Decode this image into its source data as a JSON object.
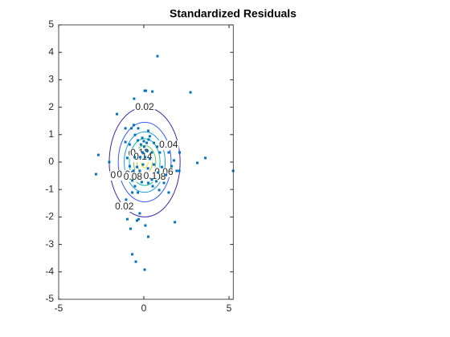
{
  "chart_data": {
    "type": "scatter",
    "title": "Standardized Residuals",
    "xlim": [
      -5,
      5.25
    ],
    "ylim": [
      -5,
      5
    ],
    "xticks": [
      -5,
      0,
      5
    ],
    "yticks": [
      -5,
      -4,
      -3,
      -2,
      -1,
      0,
      1,
      2,
      3,
      4,
      5
    ],
    "color": "#0072bd",
    "x": [
      0.8,
      0.05,
      0.12,
      0.5,
      2.74,
      -0.57,
      -1.58,
      -2.03,
      -2.67,
      -2.81,
      2.1,
      3.14,
      3.61,
      5.24,
      2.08,
      1.93,
      1.46,
      1.82,
      -0.97,
      -1.04,
      -0.24,
      -0.4,
      -0.31,
      -0.78,
      0.09,
      0.26,
      -0.68,
      -0.47,
      0.05,
      -0.59,
      -0.33,
      -1.08,
      -0.97,
      -0.83,
      -0.61,
      -0.68,
      -0.52,
      0.35,
      0.59,
      0.78,
      0.94,
      1.06,
      0.83,
      0.47,
      0.26,
      -0.12,
      -0.35,
      -0.17,
      0,
      0.17,
      0.28,
      0.17,
      0.07,
      -0.07,
      -0.21,
      0.35,
      0.47,
      -0.4,
      -0.24,
      -0.05,
      0.24,
      0.59,
      -0.54,
      -0.83,
      0.02,
      -0.09,
      0.26,
      -0.52,
      -1.08,
      -0.73,
      0.52,
      0.73,
      0.9,
      1.18,
      1.3,
      -0.35,
      -0.68,
      1.46,
      1.63,
      1.77
    ],
    "values": [
      3.86,
      2.6,
      2.6,
      2.57,
      2.54,
      2.31,
      1.75,
      0,
      0.26,
      -0.44,
      0.35,
      -0.03,
      0.15,
      -0.32,
      -0.32,
      -0.32,
      -1.11,
      -2.19,
      -2.08,
      -1.37,
      -1.87,
      -2.13,
      -2.08,
      -2.43,
      -2.31,
      -2.72,
      -3.36,
      -3.63,
      -3.92,
      1.35,
      1.23,
      0.73,
      0.15,
      -0.15,
      -0.32,
      -0.67,
      -0.88,
      0.94,
      0.7,
      0.56,
      0.35,
      -0.18,
      -0.38,
      -0.64,
      -0.76,
      -0.73,
      0.79,
      0.64,
      0.76,
      0.7,
      0.82,
      0.41,
      0.18,
      0.35,
      0.18,
      0.12,
      0.35,
      -0.18,
      -0.32,
      -0.09,
      -0.23,
      -0.09,
      0.18,
      0.64,
      0.56,
      0.88,
      1.14,
      0.99,
      1.23,
      1.23,
      -0.88,
      -0.7,
      -1.02,
      -0.76,
      -0.47,
      -1.11,
      -1.11,
      0.35,
      -0.15,
      0.06
    ],
    "center": [
      0.05,
      0
    ],
    "contours": [
      {
        "level": 0.02,
        "color": "#3e26a8",
        "rx": 2.08,
        "ry": 2.0
      },
      {
        "level": 0.04,
        "color": "#3a5ef5",
        "rx": 1.55,
        "ry": 1.45
      },
      {
        "level": 0.06,
        "color": "#1e9bdb",
        "rx": 1.2,
        "ry": 1.1
      },
      {
        "level": 0.08,
        "color": "#15b8a8",
        "rx": 0.9,
        "ry": 0.85
      },
      {
        "level": 0.1,
        "color": "#6cc65d",
        "rx": 0.65,
        "ry": 0.6
      },
      {
        "level": 0.12,
        "color": "#d8b93a",
        "rx": 0.45,
        "ry": 0.42
      },
      {
        "level": 0.14,
        "color": "#f9e61f",
        "rx": 0.2,
        "ry": 0.2
      }
    ]
  }
}
